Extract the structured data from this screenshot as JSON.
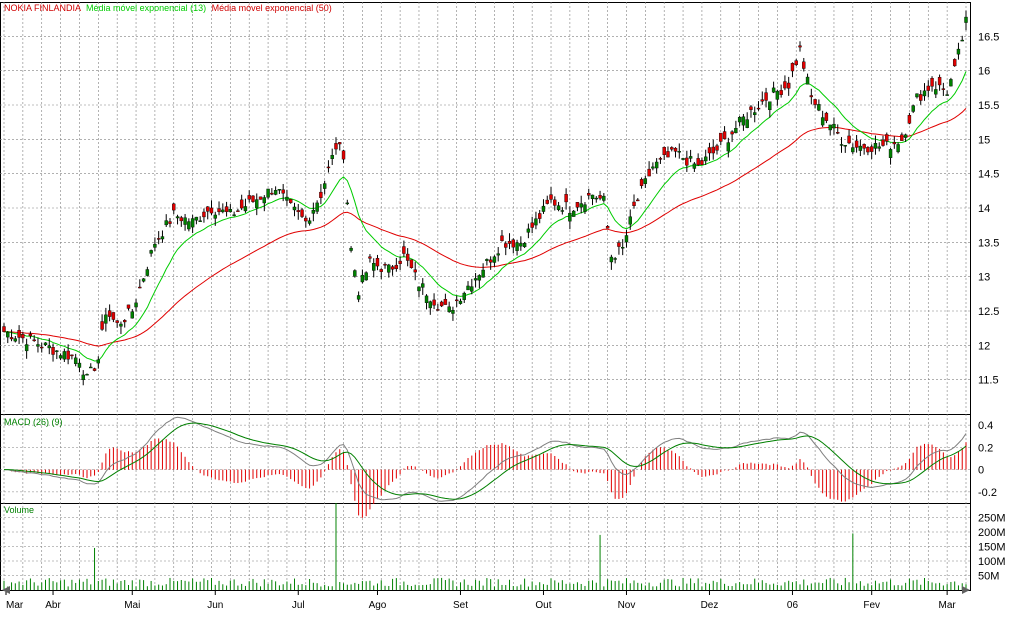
{
  "chart_data": {
    "type": "candlestick",
    "legend": {
      "instrument": "NOKIA FINLANDIA",
      "ema13": "Média móvel exponencial (13)",
      "ema50": "Média móvel exponencial (50)"
    },
    "colors": {
      "up": "#008000",
      "down": "#e00000",
      "ema13": "#00cc00",
      "ema50": "#e00000",
      "macd": "#808080",
      "signal": "#008000",
      "volume": "#008000",
      "grid": "#808080",
      "frame": "#000000",
      "title": "#d00000"
    },
    "price_panel": {
      "ylim": [
        11.0,
        17.0
      ],
      "yticks": [
        11.5,
        12,
        12.5,
        13,
        13.5,
        14,
        14.5,
        15,
        15.5,
        16,
        16.5
      ],
      "ytick_labels": [
        "11.5",
        "12",
        "12.5",
        "13",
        "13.5",
        "14",
        "14.5",
        "15",
        "15.5",
        "16",
        "16.5"
      ]
    },
    "macd_panel": {
      "label": "MACD (26) (9)",
      "ylim": [
        -0.3,
        0.5
      ],
      "yticks": [
        -0.2,
        0,
        0.2,
        0.4
      ],
      "ytick_labels": [
        "-0.2",
        "0",
        "0.2",
        "0.4"
      ]
    },
    "volume_panel": {
      "label": "Volume",
      "ylim": [
        0,
        300
      ],
      "yticks": [
        50,
        100,
        150,
        200,
        250
      ],
      "ytick_labels": [
        "50M",
        "100M",
        "150M",
        "200M",
        "250M"
      ]
    },
    "months": [
      "Mar",
      "Abr",
      "Mai",
      "Jun",
      "Jul",
      "Ago",
      "Set",
      "Out",
      "Nov",
      "Dez",
      "06",
      "Fev",
      "Mar"
    ],
    "month_start_index": [
      0,
      13,
      34,
      56,
      78,
      99,
      121,
      143,
      165,
      187,
      209,
      230,
      250
    ],
    "ohlc_close_anchors": [
      [
        0,
        12.2
      ],
      [
        8,
        12.05
      ],
      [
        15,
        11.9
      ],
      [
        20,
        11.8
      ],
      [
        22,
        11.5
      ],
      [
        25,
        11.8
      ],
      [
        27,
        12.5
      ],
      [
        30,
        12.3
      ],
      [
        34,
        12.5
      ],
      [
        40,
        13.5
      ],
      [
        45,
        13.9
      ],
      [
        50,
        13.8
      ],
      [
        55,
        14.0
      ],
      [
        60,
        13.9
      ],
      [
        66,
        14.1
      ],
      [
        72,
        14.3
      ],
      [
        76,
        14.0
      ],
      [
        80,
        13.8
      ],
      [
        84,
        14.2
      ],
      [
        88,
        14.9
      ],
      [
        90,
        14.8
      ],
      [
        92,
        13.4
      ],
      [
        94,
        12.8
      ],
      [
        97,
        13.2
      ],
      [
        102,
        13.1
      ],
      [
        106,
        13.3
      ],
      [
        110,
        12.9
      ],
      [
        115,
        12.6
      ],
      [
        118,
        12.5
      ],
      [
        122,
        12.8
      ],
      [
        128,
        13.2
      ],
      [
        132,
        13.5
      ],
      [
        137,
        13.5
      ],
      [
        141,
        13.8
      ],
      [
        145,
        14.1
      ],
      [
        150,
        14.0
      ],
      [
        156,
        14.2
      ],
      [
        159,
        14.1
      ],
      [
        161,
        13.3
      ],
      [
        164,
        13.4
      ],
      [
        167,
        14.0
      ],
      [
        172,
        14.6
      ],
      [
        178,
        14.8
      ],
      [
        184,
        14.6
      ],
      [
        190,
        14.9
      ],
      [
        196,
        15.3
      ],
      [
        202,
        15.6
      ],
      [
        208,
        15.8
      ],
      [
        211,
        16.3
      ],
      [
        214,
        15.6
      ],
      [
        218,
        15.3
      ],
      [
        222,
        15.0
      ],
      [
        226,
        14.9
      ],
      [
        230,
        14.9
      ],
      [
        234,
        14.9
      ],
      [
        238,
        15.0
      ],
      [
        242,
        15.6
      ],
      [
        246,
        15.8
      ],
      [
        250,
        15.7
      ],
      [
        252,
        16.0
      ],
      [
        255,
        16.7
      ]
    ],
    "volume_spikes": {
      "24": 145,
      "88": 300,
      "158": 190,
      "225": 195
    }
  }
}
